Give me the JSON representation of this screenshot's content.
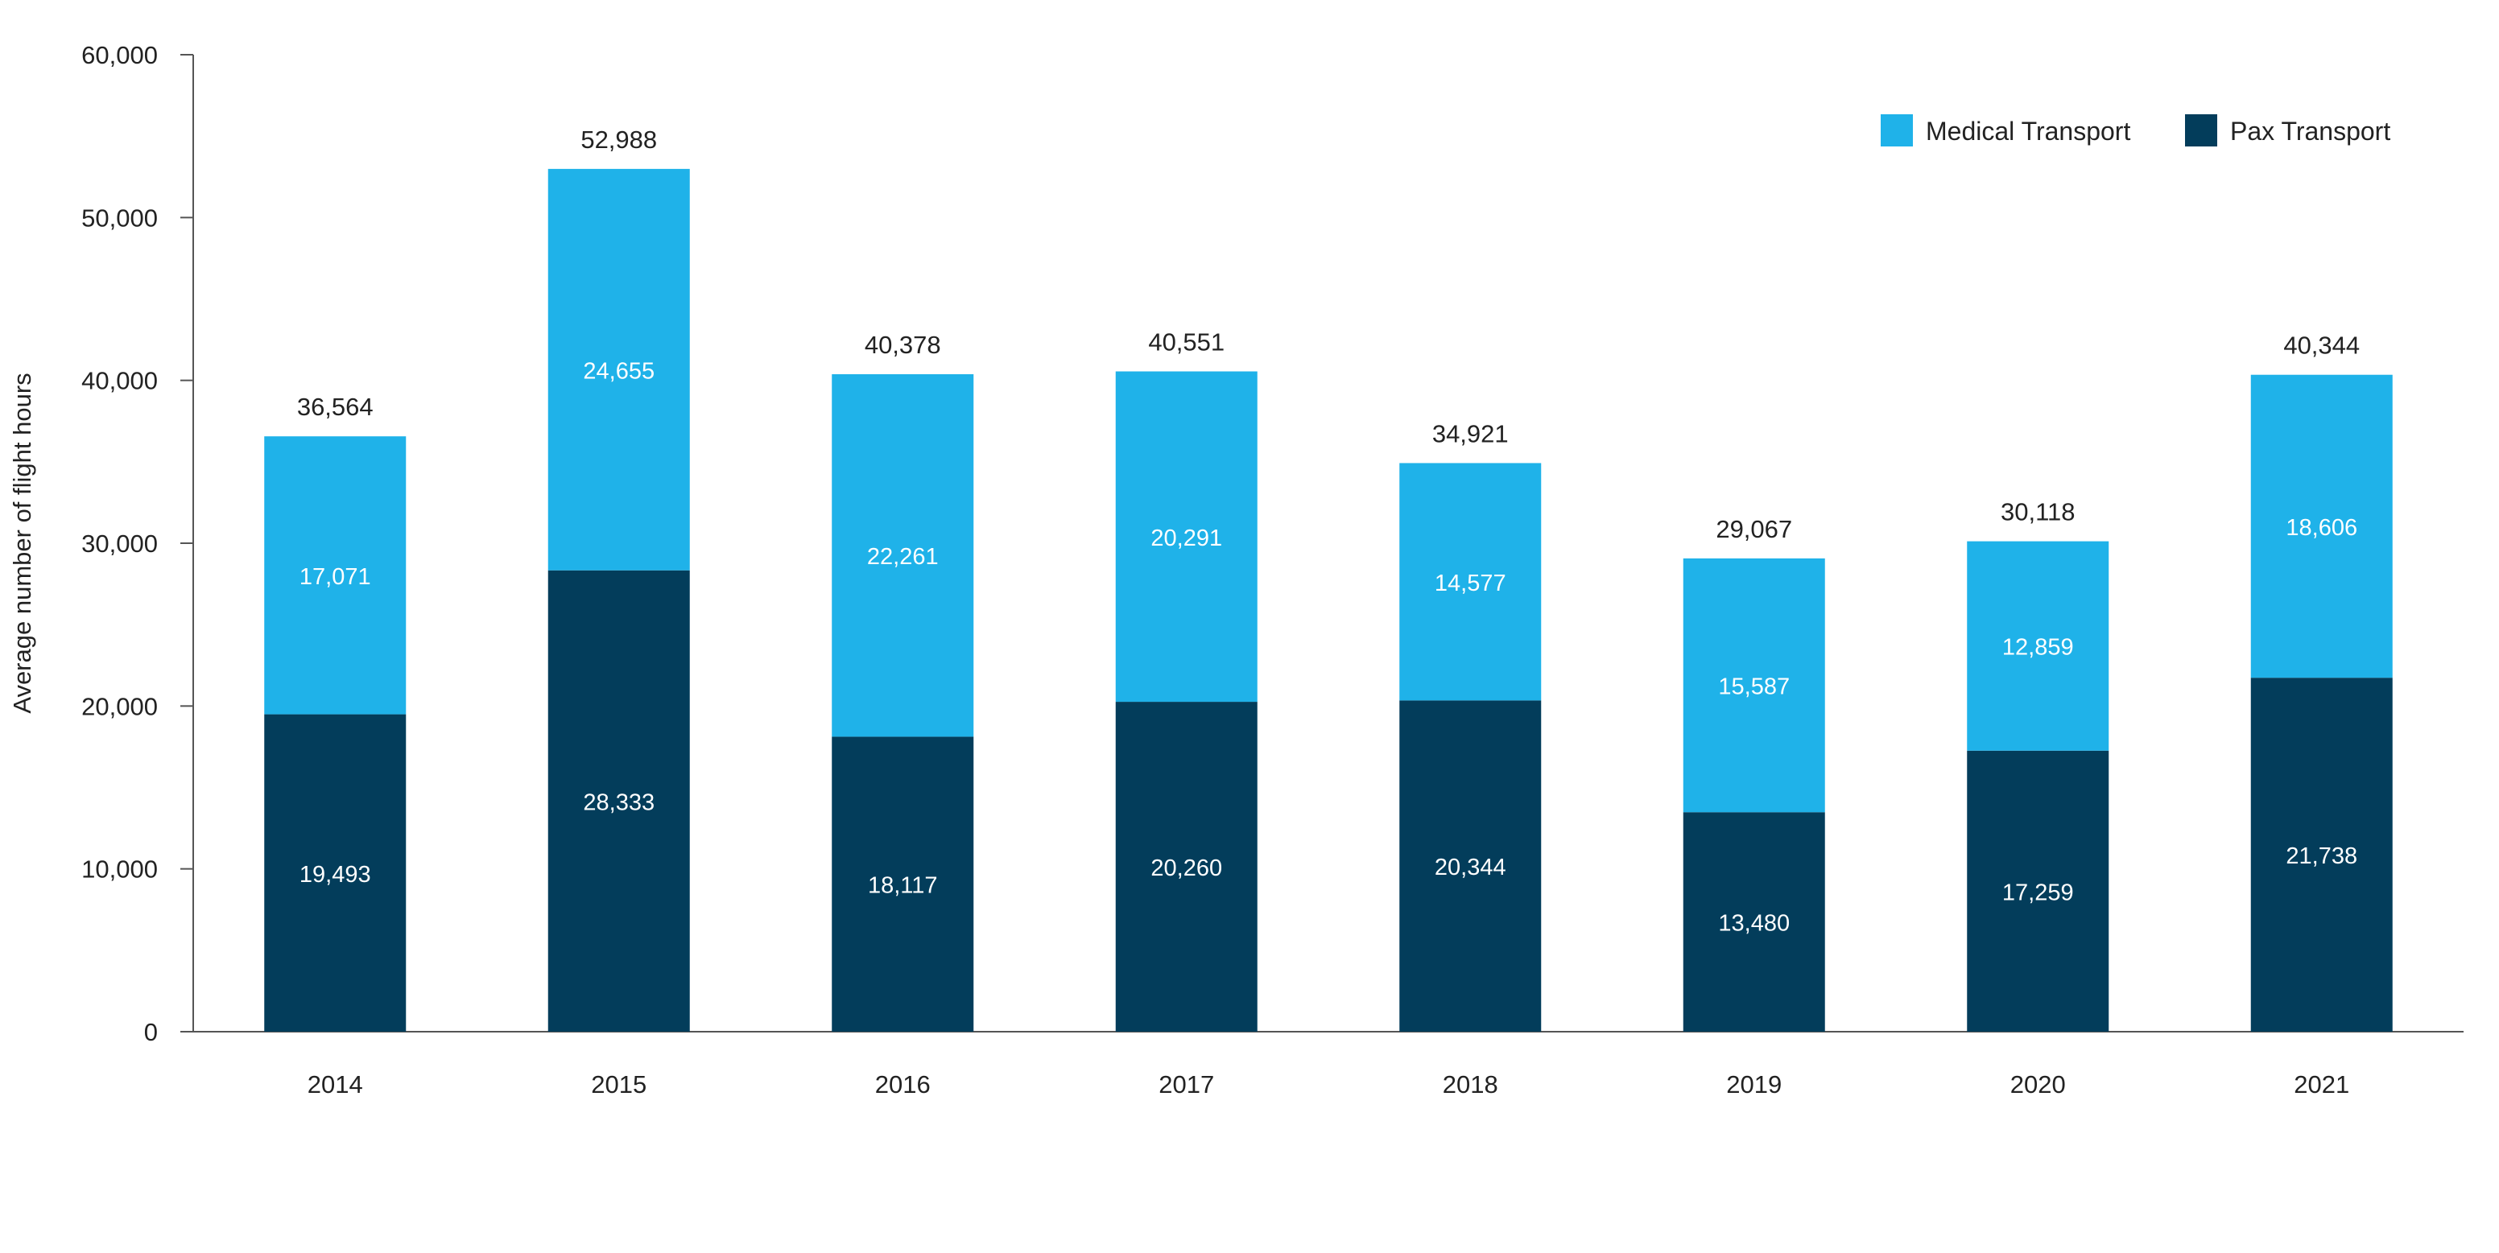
{
  "chart_data": {
    "type": "bar",
    "stacked": true,
    "title": "",
    "xlabel": "",
    "ylabel": "Average number of flight hours",
    "categories": [
      "2014",
      "2015",
      "2016",
      "2017",
      "2018",
      "2019",
      "2020",
      "2021"
    ],
    "series": [
      {
        "name": "Pax Transport",
        "color": "#033d5b",
        "values": [
          19493,
          28333,
          18117,
          20260,
          20344,
          13480,
          17259,
          21738
        ]
      },
      {
        "name": "Medical Transport",
        "color": "#1fb2e9",
        "values": [
          17071,
          24655,
          22261,
          20291,
          14577,
          15587,
          12859,
          18606
        ]
      }
    ],
    "segment_labels": [
      [
        "19,493",
        "28,333",
        "18,117",
        "20,260",
        "20,344",
        "13,480",
        "17,259",
        "21,738"
      ],
      [
        "17,071",
        "24,655",
        "22,261",
        "20,291",
        "14,577",
        "15,587",
        "12,859",
        "18,606"
      ]
    ],
    "totals": [
      36564,
      52988,
      40378,
      40551,
      34921,
      29067,
      30118,
      40344
    ],
    "total_labels": [
      "36,564",
      "52,988",
      "40,378",
      "40,551",
      "34,921",
      "29,067",
      "30,118",
      "40,344"
    ],
    "ylim": [
      0,
      60000
    ],
    "yticks": [
      0,
      10000,
      20000,
      30000,
      40000,
      50000,
      60000
    ],
    "ytick_labels": [
      "0",
      "10,000",
      "20,000",
      "30,000",
      "40,000",
      "50,000",
      "60,000"
    ],
    "legend": {
      "position": "top-right",
      "order": [
        "Medical Transport",
        "Pax Transport"
      ]
    },
    "grid": false
  }
}
